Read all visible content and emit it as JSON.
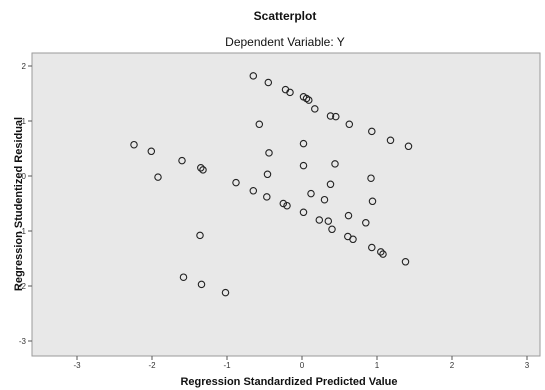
{
  "chart_data": {
    "type": "scatter",
    "title": "Scatterplot",
    "subtitle": "Dependent Variable: Y",
    "xlabel": "Regression Standardized Predicted Value",
    "ylabel": "Regression Studentized Residual",
    "xlim": [
      -3,
      3
    ],
    "ylim": [
      -3,
      2.3
    ],
    "x_ticks": [
      -3,
      -2,
      -1,
      0,
      1,
      2,
      3
    ],
    "x_tick_labels": [
      "-3",
      "-2",
      "-1",
      "0",
      "1",
      "2",
      "3"
    ],
    "y_ticks": [
      -3,
      -2,
      -1,
      0,
      1,
      2
    ],
    "y_tick_labels": [
      "-3",
      "-2",
      "-1",
      "0",
      "1",
      "2"
    ],
    "grid": false,
    "background_color": "#e8e8e8",
    "marker_color": "#222222",
    "points": [
      [
        -0.65,
        1.82
      ],
      [
        -0.45,
        1.7
      ],
      [
        -0.22,
        1.57
      ],
      [
        -0.16,
        1.52
      ],
      [
        0.02,
        1.44
      ],
      [
        0.06,
        1.41
      ],
      [
        0.09,
        1.38
      ],
      [
        0.17,
        1.22
      ],
      [
        0.38,
        1.09
      ],
      [
        0.45,
        1.08
      ],
      [
        0.63,
        0.94
      ],
      [
        0.93,
        0.81
      ],
      [
        1.18,
        0.65
      ],
      [
        1.42,
        0.54
      ],
      [
        -0.57,
        0.94
      ],
      [
        -2.24,
        0.57
      ],
      [
        -2.01,
        0.45
      ],
      [
        -1.92,
        -0.02
      ],
      [
        -1.6,
        0.28
      ],
      [
        -1.35,
        0.15
      ],
      [
        -1.32,
        0.11
      ],
      [
        -1.36,
        -1.08
      ],
      [
        -1.58,
        -1.84
      ],
      [
        -1.34,
        -1.97
      ],
      [
        -1.02,
        -2.12
      ],
      [
        -0.88,
        -0.12
      ],
      [
        -0.65,
        -0.27
      ],
      [
        -0.44,
        0.42
      ],
      [
        -0.46,
        0.03
      ],
      [
        -0.47,
        -0.38
      ],
      [
        -0.25,
        -0.5
      ],
      [
        -0.2,
        -0.54
      ],
      [
        0.02,
        0.59
      ],
      [
        0.02,
        0.19
      ],
      [
        0.02,
        -0.66
      ],
      [
        0.12,
        -0.32
      ],
      [
        0.23,
        -0.8
      ],
      [
        0.3,
        -0.43
      ],
      [
        0.35,
        -0.82
      ],
      [
        0.4,
        -0.97
      ],
      [
        0.44,
        0.22
      ],
      [
        0.38,
        -0.15
      ],
      [
        0.62,
        -0.72
      ],
      [
        0.61,
        -1.1
      ],
      [
        0.68,
        -1.15
      ],
      [
        0.85,
        -0.85
      ],
      [
        0.94,
        -0.46
      ],
      [
        0.93,
        -1.3
      ],
      [
        0.92,
        -0.04
      ],
      [
        1.05,
        -1.38
      ],
      [
        1.08,
        -1.42
      ],
      [
        1.38,
        -1.56
      ]
    ]
  }
}
